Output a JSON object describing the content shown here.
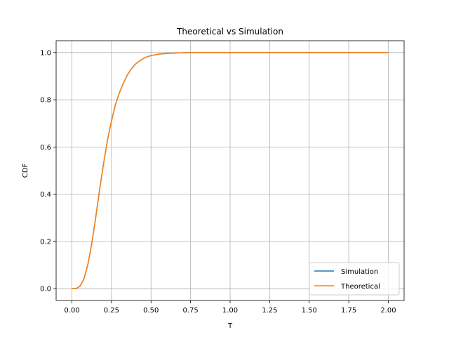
{
  "chart_data": {
    "type": "line",
    "title": "Theoretical vs Simulation",
    "xlabel": "T",
    "ylabel": "CDF",
    "xlim": [
      -0.1,
      2.1
    ],
    "ylim": [
      -0.05,
      1.05
    ],
    "xticks": [
      0.0,
      0.25,
      0.5,
      0.75,
      1.0,
      1.25,
      1.5,
      1.75,
      2.0
    ],
    "xtick_labels": [
      "0.00",
      "0.25",
      "0.50",
      "0.75",
      "1.00",
      "1.25",
      "1.50",
      "1.75",
      "2.00"
    ],
    "yticks": [
      0.0,
      0.2,
      0.4,
      0.6,
      0.8,
      1.0
    ],
    "ytick_labels": [
      "0.0",
      "0.2",
      "0.4",
      "0.6",
      "0.8",
      "1.0"
    ],
    "grid": true,
    "legend_position": "lower-right",
    "series": [
      {
        "name": "Simulation",
        "color": "#1f77b4",
        "x": [
          0.0,
          0.025,
          0.05,
          0.075,
          0.1,
          0.125,
          0.15,
          0.175,
          0.2,
          0.225,
          0.25,
          0.275,
          0.3,
          0.325,
          0.35,
          0.375,
          0.4,
          0.425,
          0.45,
          0.475,
          0.5,
          0.55,
          0.6,
          0.65,
          0.7,
          0.75,
          0.8,
          0.9,
          1.0,
          1.25,
          1.5,
          1.75,
          2.0
        ],
        "y": [
          0.0,
          0.0,
          0.01,
          0.04,
          0.1,
          0.19,
          0.3,
          0.42,
          0.53,
          0.63,
          0.71,
          0.78,
          0.83,
          0.87,
          0.905,
          0.93,
          0.95,
          0.963,
          0.974,
          0.982,
          0.987,
          0.993,
          0.996,
          0.998,
          0.999,
          1.0,
          1.0,
          1.0,
          1.0,
          1.0,
          1.0,
          1.0,
          1.0
        ]
      },
      {
        "name": "Theoretical",
        "color": "#ff7f0e",
        "x": [
          0.0,
          0.025,
          0.05,
          0.075,
          0.1,
          0.125,
          0.15,
          0.175,
          0.2,
          0.225,
          0.25,
          0.275,
          0.3,
          0.325,
          0.35,
          0.375,
          0.4,
          0.425,
          0.45,
          0.475,
          0.5,
          0.55,
          0.6,
          0.65,
          0.7,
          0.75,
          0.8,
          0.9,
          1.0,
          1.25,
          1.5,
          1.75,
          2.0
        ],
        "y": [
          0.0,
          0.0,
          0.01,
          0.04,
          0.1,
          0.19,
          0.3,
          0.42,
          0.53,
          0.63,
          0.71,
          0.78,
          0.83,
          0.87,
          0.905,
          0.93,
          0.95,
          0.963,
          0.974,
          0.982,
          0.987,
          0.993,
          0.996,
          0.998,
          0.999,
          1.0,
          1.0,
          1.0,
          1.0,
          1.0,
          1.0,
          1.0,
          1.0
        ]
      }
    ]
  }
}
